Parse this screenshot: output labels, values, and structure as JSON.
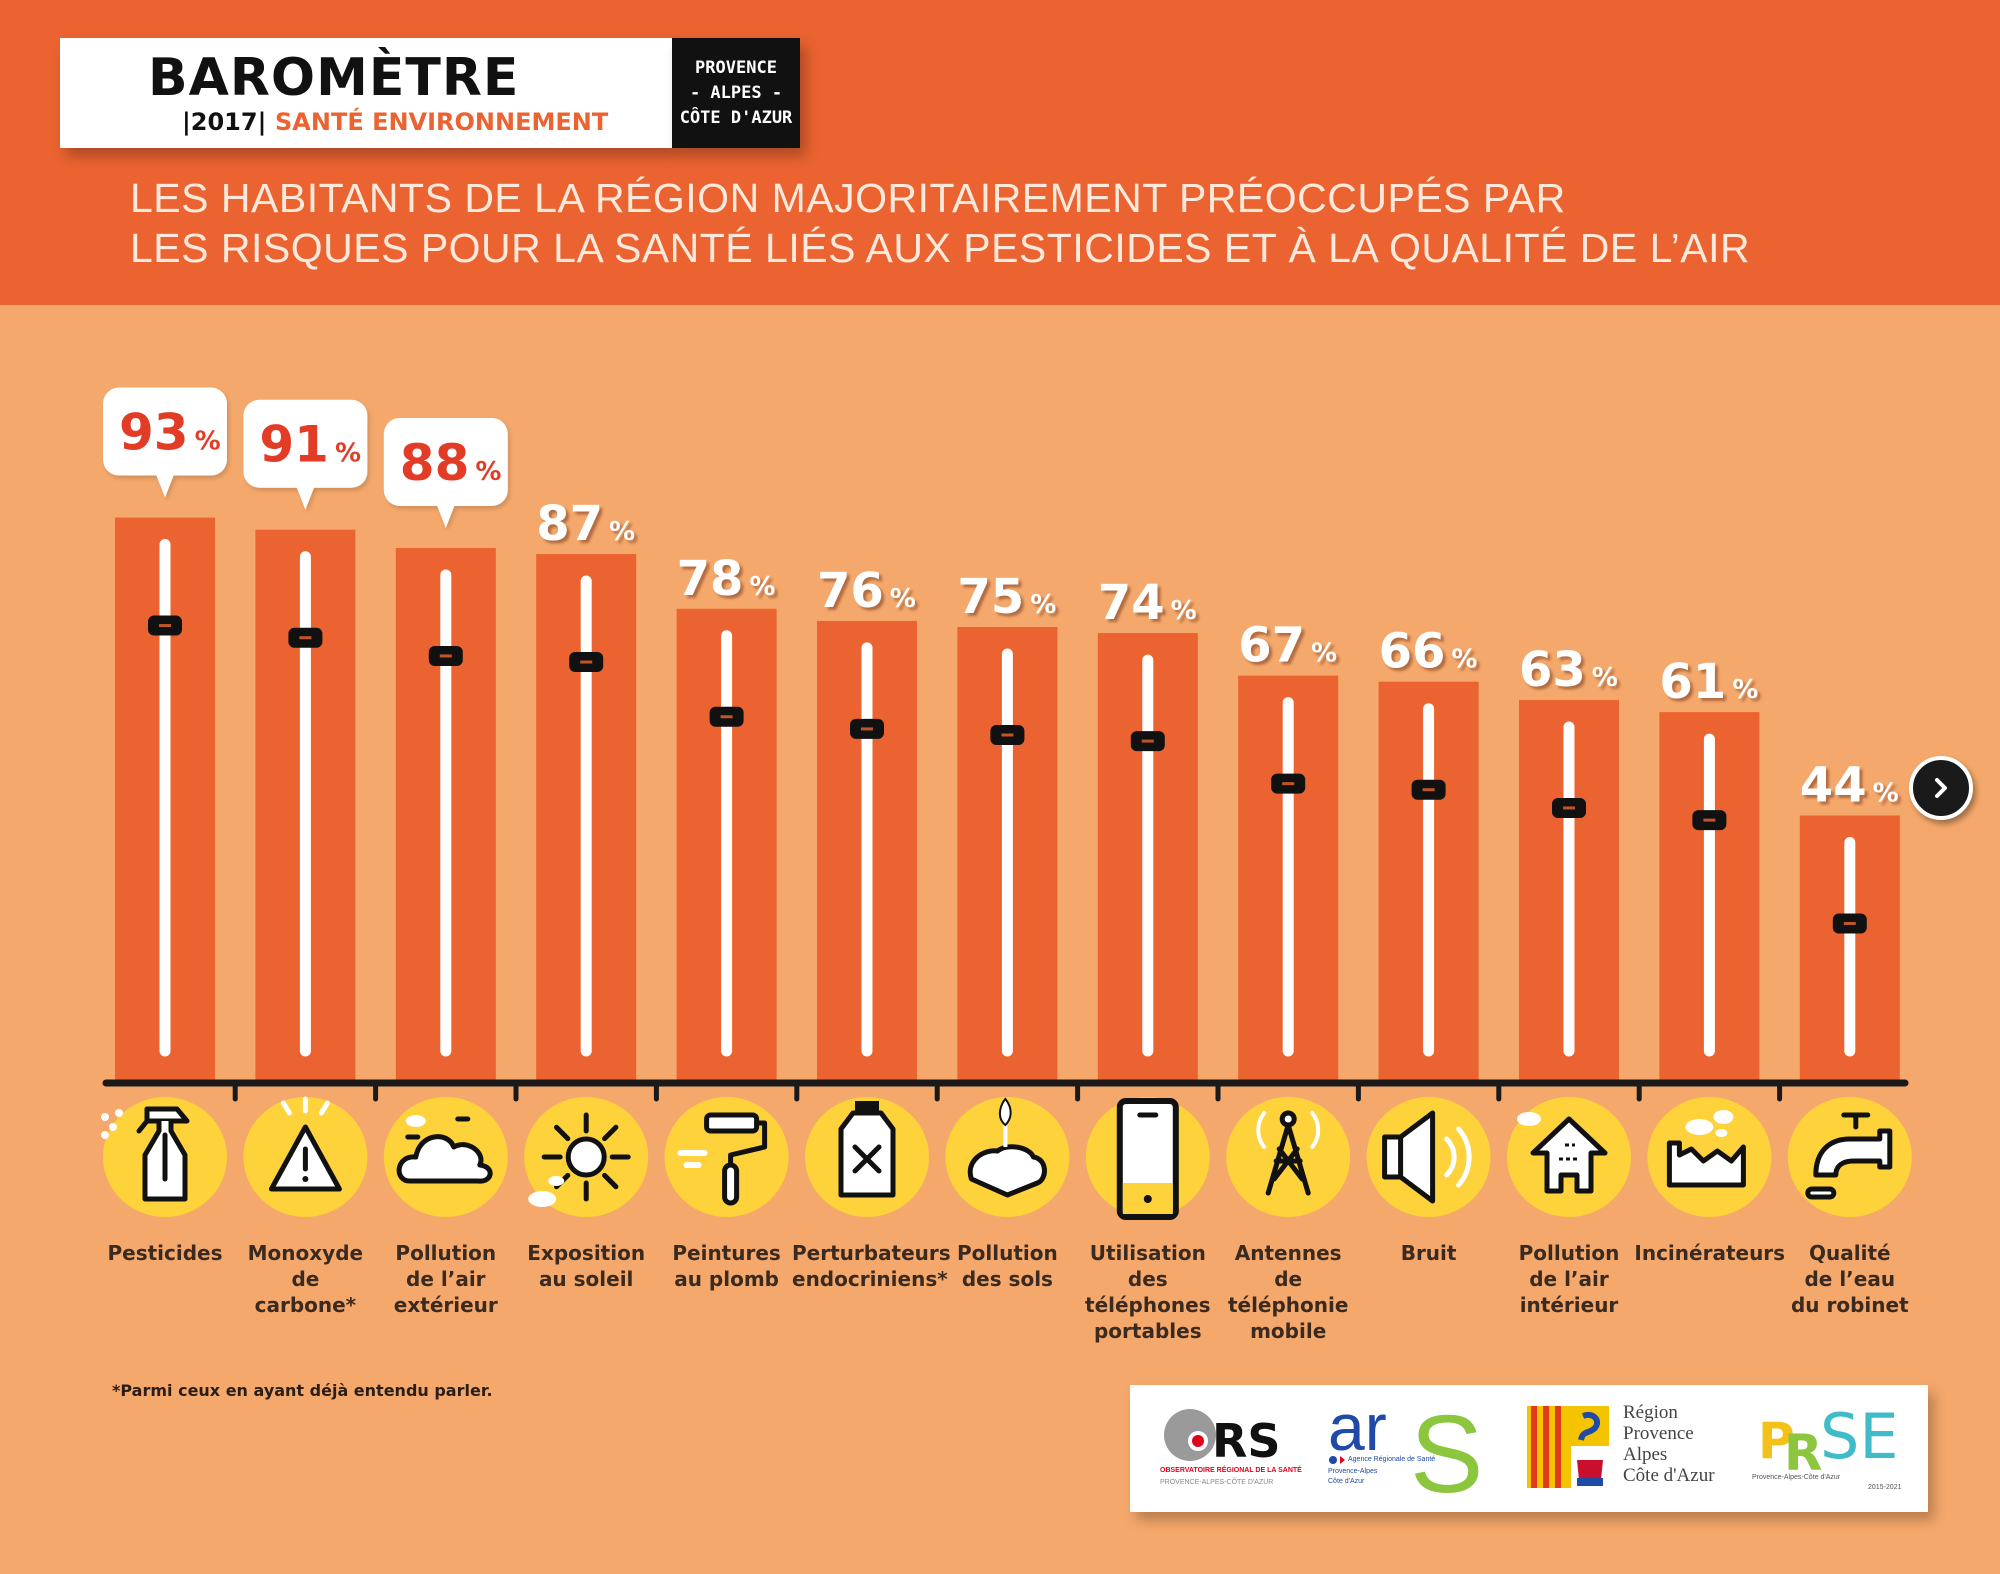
{
  "header": {
    "logo_title": "BAROMÈTRE",
    "logo_year": "|2017|",
    "logo_subtitle": "SANTÉ ENVIRONNEMENT",
    "region_lines": [
      "PROVENCE",
      "- ALPES -",
      "CÔTE D'AZUR"
    ],
    "title_lines": [
      "LES HABITANTS DE LA RÉGION MAJORITAIREMENT PRÉOCCUPÉS PAR",
      "LES RISQUES POUR LA SANTÉ LIÉS AUX PESTICIDES ET À LA QUALITÉ DE L’AIR"
    ]
  },
  "colors": {
    "header_bg": "#EA6330",
    "body_bg": "#F5A86B",
    "bar": "#EA6330",
    "icon_circle": "#FDD23A",
    "highlight_value": "#E23B26",
    "value_label": "#FFFFFF",
    "axis": "#1A1A1A"
  },
  "chart_data": {
    "type": "bar",
    "title": "LES HABITANTS DE LA RÉGION MAJORITAIREMENT PRÉOCCUPÉS PAR LES RISQUES POUR LA SANTÉ LIÉS AUX PESTICIDES ET À LA QUALITÉ DE L’AIR",
    "xlabel": "",
    "ylabel": "",
    "ylim": [
      0,
      100
    ],
    "grid": false,
    "unit": "%",
    "highlighted_count": 3,
    "categories": [
      "Pesticides",
      "Monoxyde de carbone*",
      "Pollution de l’air extérieur",
      "Exposition au soleil",
      "Peintures au plomb",
      "Perturbateurs endocriniens*",
      "Pollution des sols",
      "Utilisation des téléphones portables",
      "Antennes de téléphonie mobile",
      "Bruit",
      "Pollution de l’air intérieur",
      "Incinérateurs",
      "Qualité de l’eau du robinet"
    ],
    "label_lines": [
      [
        "Pesticides"
      ],
      [
        "Monoxyde",
        "de",
        "carbone*"
      ],
      [
        "Pollution",
        "de l’air",
        "extérieur"
      ],
      [
        "Exposition",
        "au soleil"
      ],
      [
        "Peintures",
        "au plomb"
      ],
      [
        "Perturbateurs",
        "endocriniens*"
      ],
      [
        "Pollution",
        "des sols"
      ],
      [
        "Utilisation",
        "des",
        "téléphones",
        "portables"
      ],
      [
        "Antennes",
        "de",
        "téléphonie",
        "mobile"
      ],
      [
        "Bruit"
      ],
      [
        "Pollution",
        "de l’air",
        "intérieur"
      ],
      [
        "Incinérateurs"
      ],
      [
        "Qualité",
        "de l’eau",
        "du robinet"
      ]
    ],
    "icons": [
      "spray-bottle-icon",
      "warning-triangle-icon",
      "cloud-icon",
      "sun-icon",
      "paint-roller-icon",
      "chemical-bottle-icon",
      "soil-sprout-icon",
      "mobile-phone-icon",
      "antenna-tower-icon",
      "speaker-icon",
      "house-icon",
      "factory-icon",
      "water-tap-icon"
    ],
    "values": [
      93,
      91,
      88,
      87,
      78,
      76,
      75,
      74,
      67,
      66,
      63,
      61,
      44
    ]
  },
  "footnote": "*Parmi ceux en ayant déjà entendu parler.",
  "partners": {
    "ors": {
      "name": "ORS",
      "line1": "OBSERVATOIRE RÉGIONAL DE LA SANTÉ",
      "line2": "PROVENCE-ALPES-CÔTE D'AZUR"
    },
    "ars": {
      "name": "ars",
      "line1": "Agence Régionale de Santé",
      "line2": "Provence-Alpes",
      "line3": "Côte d'Azur"
    },
    "region": {
      "lines": [
        "Région",
        "Provence",
        "Alpes",
        "Côte d'Azur"
      ]
    },
    "prse": {
      "letters": [
        "P",
        "R",
        "SE"
      ],
      "line1": "Provence-Alpes-Côte d'Azur",
      "line2": "2015-2021"
    }
  },
  "navigation": {
    "next_icon": "chevron-right-icon"
  }
}
